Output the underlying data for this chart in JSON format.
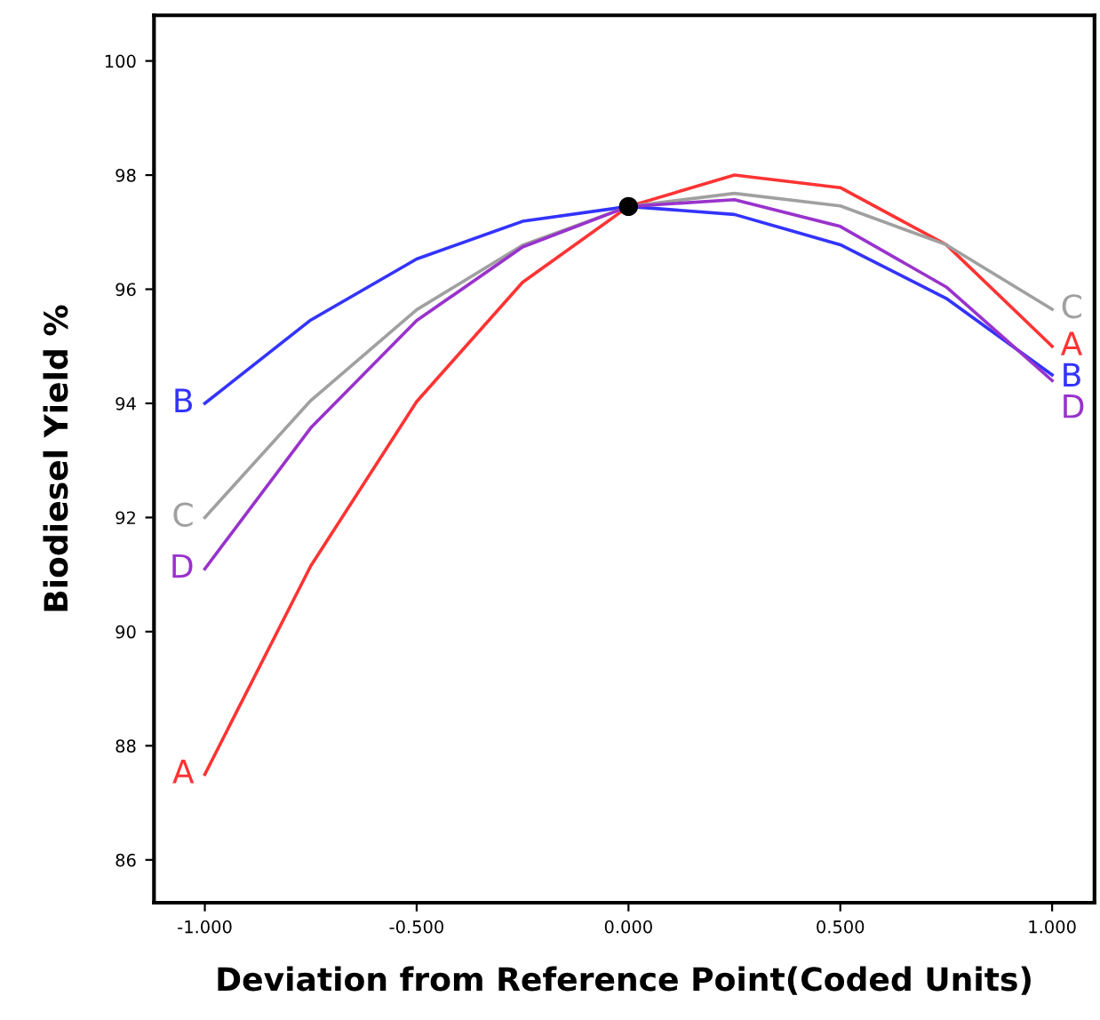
{
  "chart_data": {
    "type": "line",
    "xlabel": "Deviation from Reference Point(Coded Units)",
    "ylabel": "Biodiesel Yield %",
    "x": [
      -1,
      -0.75,
      -0.5,
      -0.25,
      0,
      0.25,
      0.5,
      0.75,
      1
    ],
    "series": [
      {
        "name": "A",
        "color": "#ff3333",
        "values": [
          87.5,
          91.15,
          94.03,
          96.12,
          97.45,
          98.0,
          97.78,
          96.78,
          95.0
        ]
      },
      {
        "name": "B",
        "color": "#3333ff",
        "values": [
          94.0,
          95.46,
          96.53,
          97.19,
          97.45,
          97.31,
          96.78,
          95.84,
          94.5
        ]
      },
      {
        "name": "C",
        "color": "#a0a0a0",
        "values": [
          92.0,
          94.05,
          95.64,
          96.77,
          97.45,
          97.68,
          97.46,
          96.78,
          95.65
        ]
      },
      {
        "name": "D",
        "color": "#9933cc",
        "values": [
          91.1,
          93.57,
          95.45,
          96.74,
          97.45,
          97.57,
          97.1,
          96.04,
          94.4
        ]
      },
      {
        "type": "scatter",
        "color": "#000000",
        "x": [
          0
        ],
        "values": [
          97.45
        ],
        "marker": "circle"
      }
    ],
    "xlim": [
      -1.12,
      1.1
    ],
    "ylim": [
      85.25,
      100.8
    ],
    "xticks": [
      {
        "value": -1,
        "label": "-1.000"
      },
      {
        "value": -0.5,
        "label": "-0.500"
      },
      {
        "value": 0,
        "label": "0.000"
      },
      {
        "value": 0.5,
        "label": "0.500"
      },
      {
        "value": 1,
        "label": "1.000"
      }
    ],
    "yticks": [
      86,
      88,
      90,
      92,
      94,
      96,
      98,
      100
    ],
    "grid": false,
    "legend": false,
    "line_style": "solid"
  }
}
